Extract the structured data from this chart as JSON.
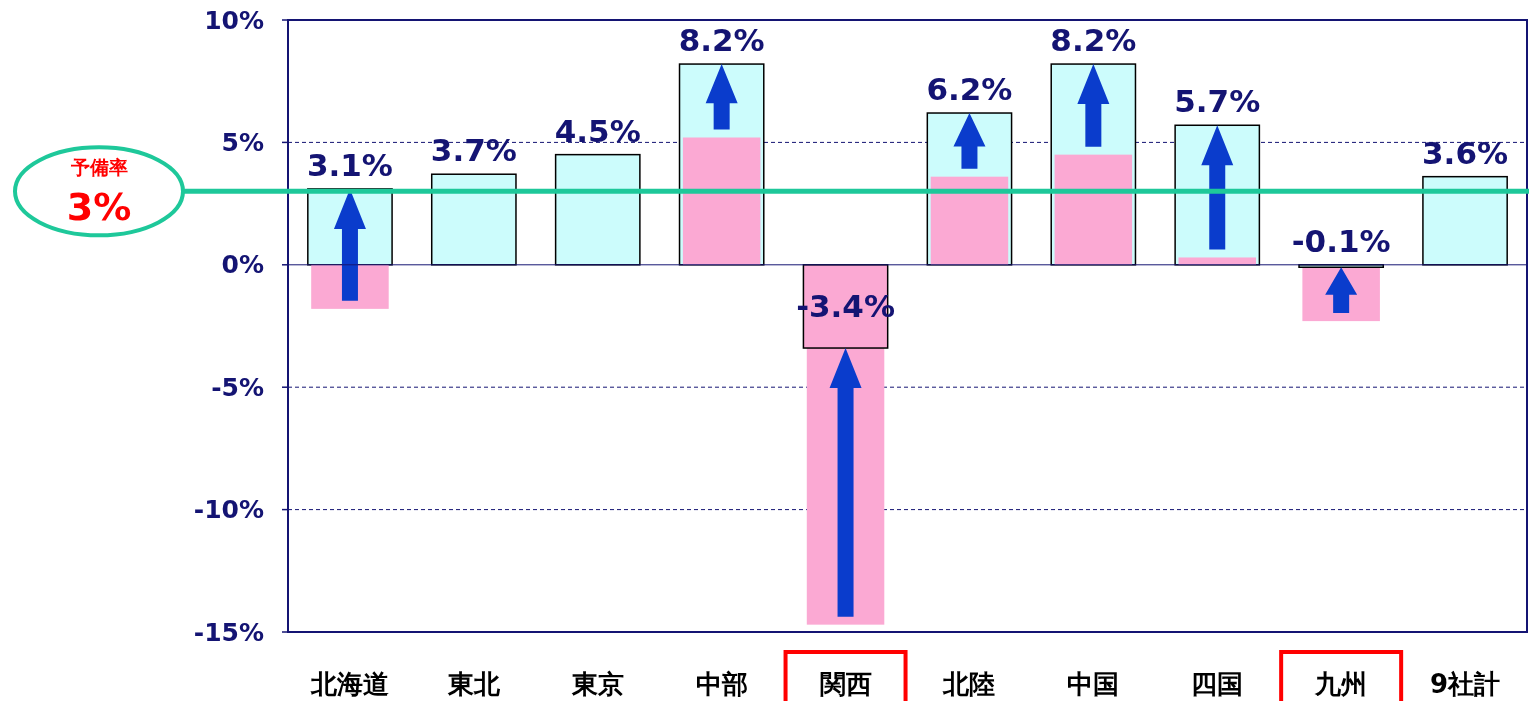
{
  "chart_data": {
    "type": "bar",
    "categories": [
      "北海道",
      "東北",
      "東京",
      "中部",
      "関西",
      "北陸",
      "中国",
      "四国",
      "九州",
      "9社計"
    ],
    "series": [
      {
        "colors": [
          "#ccfcfc",
          "#ccfcfc",
          "#ccfcfc",
          "#ccfcfc",
          "#fba9d3",
          "#ccfcfc",
          "#ccfcfc",
          "#ccfcfc",
          "#ccfcfc",
          "#ccfcfc"
        ],
        "values": [
          3.1,
          3.7,
          4.5,
          8.2,
          -3.4,
          6.2,
          8.2,
          5.7,
          -0.1,
          3.6
        ],
        "value_labels": [
          "3.1%",
          "3.7%",
          "4.5%",
          "8.2%",
          "-3.4%",
          "6.2%",
          "8.2%",
          "5.7%",
          "-0.1%",
          "3.6%"
        ]
      },
      {
        "color": "#fba9d3",
        "values": [
          -1.8,
          null,
          null,
          5.2,
          -14.7,
          3.6,
          4.5,
          0.3,
          -2.3,
          null
        ]
      }
    ],
    "ylim": [
      -15,
      10
    ],
    "yticks": [
      {
        "value": -15,
        "label": "-15%"
      },
      {
        "value": -10,
        "label": "-10%"
      },
      {
        "value": -5,
        "label": "-5%"
      },
      {
        "value": 0,
        "label": "0%"
      },
      {
        "value": 5,
        "label": "5%"
      },
      {
        "value": 10,
        "label": "10%"
      }
    ],
    "grid": "y",
    "ref_lines": [
      {
        "axis": "y",
        "value": 0,
        "color": "#141473"
      },
      {
        "axis": "y",
        "value": 3,
        "label": "予備率\n3%",
        "color": "#1ec89a"
      }
    ]
  }
}
